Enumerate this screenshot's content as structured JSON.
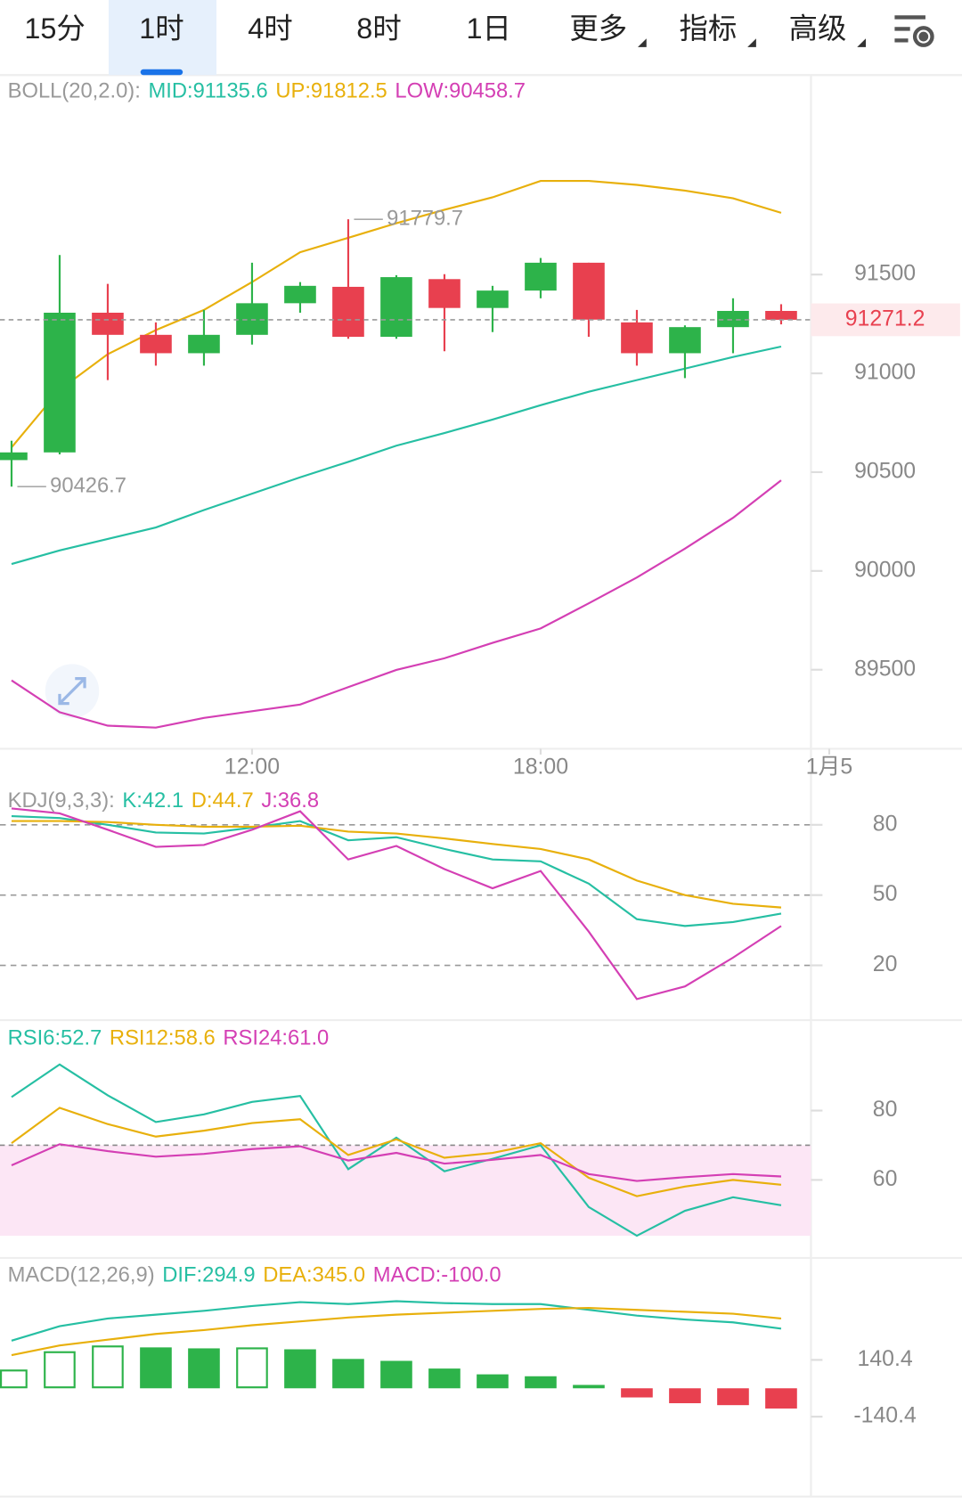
{
  "tabs": [
    "15分",
    "1时",
    "4时",
    "8时",
    "1日",
    "更多",
    "指标",
    "高级"
  ],
  "active_tab": 1,
  "chart_data": [
    {
      "type": "candlestick",
      "indicator": "BOLL(20,2.0):",
      "legend_separator": ":",
      "xlim": [
        -0.24,
        19.76
      ],
      "xticks": [
        {
          "value": 5,
          "label": "12:00"
        },
        {
          "value": 11,
          "label": "18:00"
        },
        {
          "value": 17,
          "label": "1月5"
        }
      ],
      "ylim": [
        89100,
        92500
      ],
      "yticks": [
        89500,
        90000,
        90500,
        91000,
        91500
      ],
      "grid": false,
      "up_color": "#2db34a",
      "down_color": "#e8404f",
      "open": [
        90561,
        90600,
        91307,
        91195,
        91102,
        91195,
        91355,
        91438,
        91185,
        91477,
        91331,
        91419,
        91560,
        91258,
        91102,
        91234,
        91316
      ],
      "high": [
        90659,
        91599,
        91453,
        91258,
        91321,
        91560,
        91462,
        91779.7,
        91497,
        91502,
        91443,
        91584,
        91560,
        91321,
        91243,
        91380,
        91350
      ],
      "low": [
        90426.7,
        90590,
        90966,
        91039,
        91039,
        91146,
        91307,
        91175,
        91175,
        91112,
        91209,
        91380,
        91185,
        91039,
        90976,
        91102,
        91248
      ],
      "close": [
        90600,
        91307,
        91195,
        91102,
        91195,
        91355,
        91443,
        91185,
        91487,
        91331,
        91419,
        91560,
        91272,
        91102,
        91234,
        91316,
        91271.2
      ],
      "series": [
        {
          "name": "MID",
          "color": "#26bfa3",
          "values": [
            90035,
            90104,
            90162,
            90220,
            90308,
            90391,
            90474,
            90552,
            90634,
            90698,
            90766,
            90839,
            90907,
            90966,
            91024,
            91083,
            91135.6
          ]
        },
        {
          "name": "UP",
          "color": "#e8b00c",
          "values": [
            90625,
            90917,
            91097,
            91219,
            91321,
            91462,
            91613,
            91686,
            91760,
            91828,
            91891,
            91974,
            91974,
            91954,
            91925,
            91886,
            91812.5
          ]
        },
        {
          "name": "LOW",
          "color": "#d43fb4",
          "values": [
            89446,
            89285,
            89217,
            89207,
            89256,
            89290,
            89324,
            89412,
            89499,
            89558,
            89636,
            89709,
            89836,
            89967,
            90113,
            90269,
            90458.7
          ]
        }
      ]
    },
    {
      "type": "line",
      "indicator": "KDJ(9,3,3):",
      "legend_separator": ":",
      "xlim": [
        -0.24,
        19.76
      ],
      "ylim": [
        -3.4,
        98.5
      ],
      "yticks": [
        20,
        50,
        80
      ],
      "grid": "dashed",
      "series": [
        {
          "name": "K",
          "color": "#26bfa3",
          "values": [
            83.7,
            82.9,
            80.0,
            76.7,
            76.3,
            78.8,
            81.6,
            73.4,
            74.7,
            69.7,
            65.2,
            64.4,
            54.9,
            39.7,
            36.8,
            38.5,
            42.1
          ]
        },
        {
          "name": "D",
          "color": "#e8b00c",
          "values": [
            81.6,
            81.6,
            81.2,
            80.0,
            79.2,
            79.2,
            79.6,
            77.1,
            76.3,
            74.2,
            71.8,
            69.7,
            65.2,
            56.2,
            50.0,
            46.3,
            44.7
          ]
        },
        {
          "name": "J",
          "color": "#d43fb4",
          "values": [
            87.0,
            84.9,
            77.9,
            70.6,
            71.4,
            77.9,
            85.8,
            65.2,
            71.0,
            61.1,
            52.9,
            60.3,
            34.4,
            5.6,
            11.0,
            23.3,
            36.8
          ]
        }
      ]
    },
    {
      "type": "line",
      "legend_separator": ":",
      "xlim": [
        -0.24,
        19.76
      ],
      "ylim": [
        43.9,
        103.3
      ],
      "yticks": [
        60,
        80
      ],
      "grid": false,
      "reference_line": 70,
      "shade_below_reference": "#fce6f5",
      "series": [
        {
          "name": "RSI6",
          "color": "#26bfa3",
          "values": [
            83.9,
            93.3,
            84.4,
            76.7,
            78.9,
            82.5,
            84.2,
            63.1,
            72.2,
            62.5,
            66.1,
            70.0,
            52.2,
            43.9,
            51.1,
            55.0,
            52.7
          ]
        },
        {
          "name": "RSI12",
          "color": "#e8b00c",
          "values": [
            70.6,
            80.8,
            76.1,
            72.5,
            74.2,
            76.4,
            77.5,
            67.2,
            71.7,
            66.4,
            67.8,
            70.6,
            60.6,
            55.3,
            58.1,
            60.0,
            58.6
          ]
        },
        {
          "name": "RSI24",
          "color": "#d43fb4",
          "values": [
            64.2,
            70.3,
            68.3,
            66.7,
            67.5,
            68.9,
            69.7,
            65.6,
            67.8,
            64.7,
            65.8,
            67.2,
            61.7,
            59.7,
            60.8,
            61.7,
            61.0
          ],
          "value_labels": [
            null,
            null,
            null,
            null,
            null,
            null,
            null,
            null,
            null,
            null,
            null,
            null,
            null,
            null,
            null,
            null,
            "61.0"
          ]
        }
      ]
    },
    {
      "type": "macd",
      "indicator": "MACD(12,26,9)",
      "legend_separator": ":",
      "xlim": [
        -0.24,
        19.76
      ],
      "ylim": [
        -535.5,
        630.7
      ],
      "yticks": [
        140.4,
        -140.4
      ],
      "grid": false,
      "up_color": "#2db34a",
      "down_color": "#e8404f",
      "series": [
        {
          "name": "DIF",
          "type": "line",
          "color": "#26bfa3",
          "values": [
            235.6,
            307.0,
            345.1,
            364.1,
            383.2,
            407.0,
            426.0,
            416.5,
            430.8,
            421.3,
            416.5,
            416.5,
            387.9,
            359.4,
            340.3,
            326.1,
            294.9
          ]
        },
        {
          "name": "DEA",
          "type": "line",
          "color": "#e8b00c",
          "values": [
            164.2,
            211.8,
            240.4,
            268.9,
            288.0,
            311.8,
            330.8,
            349.9,
            364.1,
            373.7,
            383.2,
            392.7,
            397.5,
            387.9,
            378.4,
            368.9,
            345.0
          ],
          "value_labels": [
            null,
            null,
            null,
            null,
            null,
            null,
            null,
            null,
            null,
            null,
            null,
            null,
            null,
            null,
            null,
            null,
            "345.0"
          ]
        },
        {
          "name": "MACD",
          "type": "bar",
          "color": "#d43fb4",
          "values": [
            92.8,
            183.3,
            211.8,
            202.3,
            197.5,
            202.3,
            192.8,
            145.2,
            135.7,
            97.6,
            69.0,
            59.5,
            16.7,
            -45.2,
            -73.8,
            -83.3,
            -100.0
          ],
          "value_labels": [
            null,
            null,
            null,
            null,
            null,
            null,
            null,
            null,
            null,
            null,
            null,
            null,
            null,
            null,
            null,
            null,
            "-100.0"
          ]
        }
      ]
    }
  ]
}
